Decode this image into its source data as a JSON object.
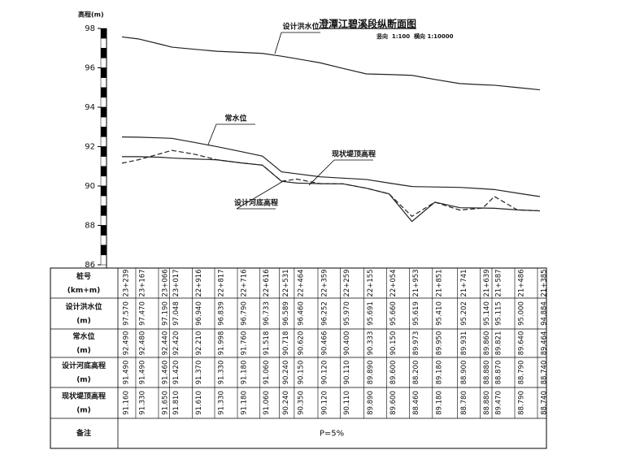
{
  "chart_data": {
    "type": "line",
    "title": "澄潭江碧溪段纵断面图",
    "subtitle": "竖向  1:100  横向 1:10000",
    "y_label": "高程(m)",
    "categories": [
      "23+239",
      "23+167",
      "23+066",
      "23+017",
      "22+916",
      "22+817",
      "22+716",
      "22+616",
      "22+531",
      "22+464",
      "22+359",
      "22+259",
      "22+155",
      "22+054",
      "21+953",
      "21+851",
      "21+741",
      "21+639",
      "21+587",
      "21+486",
      "21+385"
    ],
    "ylim": [
      86,
      98
    ],
    "yticks": [
      86,
      88,
      90,
      92,
      94,
      96,
      98
    ],
    "series": [
      {
        "name": "设计洪水位",
        "color": "#222",
        "dashed": false,
        "values": [
          97.57,
          97.47,
          97.19,
          97.048,
          96.94,
          96.839,
          96.79,
          96.733,
          96.589,
          96.46,
          96.252,
          95.97,
          95.691,
          95.66,
          95.619,
          95.41,
          95.202,
          95.14,
          95.115,
          95.0,
          94.884
        ],
        "value_labels": [
          "97.570",
          "97.470",
          "97.190",
          "97.048",
          "96.940",
          "96.839",
          "96.790",
          "96.733",
          "96.589",
          "96.460",
          "96.252",
          "95.970",
          "95.691",
          "95.660",
          "95.619",
          "95.410",
          "95.202",
          "95.140",
          "95.115",
          "95.000",
          "94.884"
        ]
      },
      {
        "name": "常水位",
        "color": "#222",
        "dashed": false,
        "values": [
          92.49,
          92.48,
          92.44,
          92.42,
          92.21,
          91.998,
          91.76,
          91.518,
          90.718,
          90.62,
          90.466,
          90.4,
          90.333,
          90.15,
          89.973,
          89.95,
          89.931,
          89.86,
          89.821,
          89.64,
          89.464
        ],
        "value_labels": [
          "92.490",
          "92.480",
          "92.440",
          "92.420",
          "92.210",
          "91.998",
          "91.760",
          "91.518",
          "90.718",
          "90.620",
          "90.466",
          "90.400",
          "90.333",
          "90.150",
          "89.973",
          "89.950",
          "89.931",
          "89.860",
          "89.821",
          "89.640",
          "89.464"
        ]
      },
      {
        "name": "设计河底高程",
        "color": "#222",
        "dashed": false,
        "values": [
          91.49,
          91.49,
          91.46,
          91.42,
          91.37,
          91.33,
          91.18,
          91.06,
          90.24,
          90.15,
          90.12,
          90.11,
          89.89,
          89.6,
          88.2,
          89.18,
          88.9,
          88.88,
          88.87,
          88.79,
          88.74
        ],
        "value_labels": [
          "91.490",
          "91.490",
          "91.460",
          "91.420",
          "91.370",
          "91.330",
          "91.180",
          "91.060",
          "90.240",
          "90.150",
          "90.120",
          "90.110",
          "89.890",
          "89.600",
          "88.200",
          "89.180",
          "88.900",
          "88.880",
          "88.870",
          "88.790",
          "88.740"
        ]
      },
      {
        "name": "现状堤顶高程",
        "color": "#222",
        "dashed": true,
        "values": [
          91.16,
          91.33,
          91.65,
          91.81,
          91.61,
          91.33,
          91.18,
          91.06,
          90.24,
          90.35,
          90.12,
          90.11,
          89.89,
          89.6,
          88.46,
          89.18,
          88.78,
          88.88,
          89.47,
          88.79,
          88.74
        ],
        "value_labels": [
          "91.160",
          "91.330",
          "91.650",
          "91.810",
          "91.610",
          "91.330",
          "91.180",
          "91.060",
          "90.240",
          "90.350",
          "90.120",
          "90.110",
          "89.890",
          "89.600",
          "88.460",
          "89.180",
          "88.780",
          "88.880",
          "89.470",
          "88.790",
          "88.740"
        ]
      }
    ]
  },
  "table": {
    "row_headers": [
      "桩号",
      "设计洪水位",
      "常水位",
      "设计河底高程",
      "现状堤顶高程"
    ],
    "row_units": [
      "(km+m)",
      "(m)",
      "(m)",
      "(m)",
      "(m)"
    ],
    "note_header": "备注",
    "note": "P=5%"
  }
}
